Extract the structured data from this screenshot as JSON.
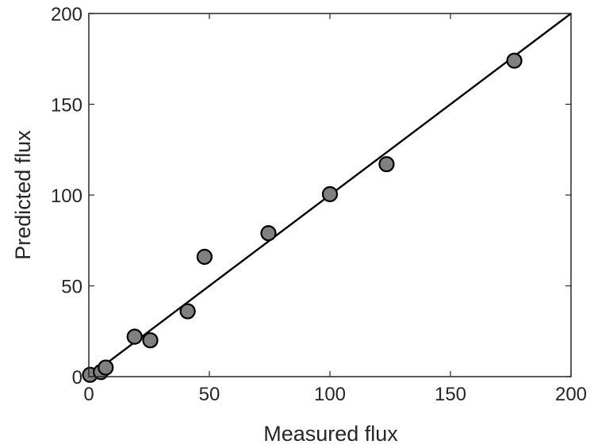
{
  "chart_data": {
    "type": "scatter",
    "title": "",
    "xlabel": "Measured flux",
    "ylabel": "Predicted flux",
    "xlim": [
      0,
      200
    ],
    "ylim": [
      0,
      200
    ],
    "xticks": [
      0,
      50,
      100,
      150,
      200
    ],
    "yticks": [
      0,
      50,
      100,
      150,
      200
    ],
    "grid": false,
    "legend": "none",
    "marker_color": "#808080",
    "marker_edge_color": "#000000",
    "line_color": "#000000",
    "series": [
      {
        "x": [
          0.5,
          5,
          7,
          19,
          25.5,
          41,
          48,
          74.5,
          100,
          123.5,
          176.5
        ],
        "y": [
          1,
          2.5,
          5,
          22,
          20,
          36,
          66,
          79,
          100.5,
          117,
          174
        ]
      }
    ],
    "reference_line": {
      "x": [
        0,
        200
      ],
      "y": [
        0,
        200
      ]
    }
  }
}
